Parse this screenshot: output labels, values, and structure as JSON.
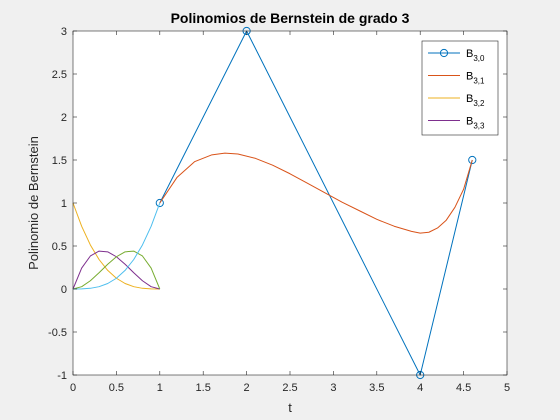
{
  "chart_data": {
    "type": "line",
    "title": "Polinomios de Bernstein de grado 3",
    "xlabel": "t",
    "ylabel": "Polinomio de Bernstein",
    "xlim": [
      0,
      5
    ],
    "ylim": [
      -1,
      3
    ],
    "xticks": [
      0,
      0.5,
      1,
      1.5,
      2,
      2.5,
      3,
      3.5,
      4,
      4.5,
      5
    ],
    "xtick_labels": [
      "0",
      "0.5",
      "1",
      "1.5",
      "2",
      "2.5",
      "3",
      "3.5",
      "4",
      "4.5",
      "5"
    ],
    "yticks": [
      -1,
      -0.5,
      0,
      0.5,
      1,
      1.5,
      2,
      2.5,
      3
    ],
    "ytick_labels": [
      "-1",
      "-0.5",
      "0",
      "0.5",
      "1",
      "1.5",
      "2",
      "2.5",
      "3"
    ],
    "grid": false,
    "legend_position": "top-right",
    "legend": [
      {
        "base": "B",
        "sub": "3,0",
        "color": "#0072BD",
        "marker": "circle"
      },
      {
        "base": "B",
        "sub": "3,1",
        "color": "#D95319",
        "marker": "none"
      },
      {
        "base": "B",
        "sub": "3,2",
        "color": "#EDB120",
        "marker": "none"
      },
      {
        "base": "B",
        "sub": "3,3",
        "color": "#7E2F8E",
        "marker": "none"
      }
    ],
    "series": [
      {
        "legend_index": 0,
        "color": "#0072BD",
        "marker": "circle",
        "x": [
          1,
          2,
          4,
          4.6
        ],
        "y": [
          1,
          3,
          -1,
          1.5
        ]
      },
      {
        "legend_index": 1,
        "color": "#D95319",
        "marker": "none",
        "x": [
          1.0,
          1.2,
          1.4,
          1.6,
          1.75,
          1.9,
          2.1,
          2.3,
          2.5,
          2.7,
          2.9,
          3.1,
          3.3,
          3.5,
          3.7,
          3.9,
          4.0,
          4.1,
          4.2,
          4.3,
          4.4,
          4.5,
          4.6
        ],
        "y": [
          1.0,
          1.3,
          1.48,
          1.56,
          1.58,
          1.57,
          1.52,
          1.44,
          1.34,
          1.23,
          1.12,
          1.01,
          0.91,
          0.81,
          0.73,
          0.67,
          0.65,
          0.66,
          0.71,
          0.8,
          0.95,
          1.16,
          1.5
        ]
      },
      {
        "legend_index": 2,
        "color": "#EDB120",
        "marker": "none",
        "x": [
          0,
          0.1,
          0.2,
          0.3,
          0.4,
          0.5,
          0.6,
          0.7,
          0.8,
          0.9,
          1.0
        ],
        "y": [
          1.0,
          0.729,
          0.512,
          0.343,
          0.216,
          0.125,
          0.064,
          0.027,
          0.008,
          0.001,
          0.0
        ]
      },
      {
        "legend_index": 3,
        "color": "#7E2F8E",
        "marker": "none",
        "x": [
          0,
          0.1,
          0.2,
          0.3,
          0.4,
          0.5,
          0.6,
          0.7,
          0.8,
          0.9,
          1.0
        ],
        "y": [
          0.0,
          0.243,
          0.384,
          0.441,
          0.432,
          0.375,
          0.288,
          0.189,
          0.096,
          0.027,
          0.0
        ]
      },
      {
        "legend_index": null,
        "color": "#77AC30",
        "marker": "none",
        "x": [
          0,
          0.1,
          0.2,
          0.3,
          0.4,
          0.5,
          0.6,
          0.7,
          0.8,
          0.9,
          1.0
        ],
        "y": [
          0.0,
          0.027,
          0.096,
          0.189,
          0.288,
          0.375,
          0.432,
          0.441,
          0.384,
          0.243,
          0.0
        ]
      },
      {
        "legend_index": null,
        "color": "#4DBEEE",
        "marker": "none",
        "x": [
          0,
          0.1,
          0.2,
          0.3,
          0.4,
          0.5,
          0.6,
          0.7,
          0.8,
          0.9,
          1.0
        ],
        "y": [
          0.0,
          0.001,
          0.008,
          0.027,
          0.064,
          0.125,
          0.216,
          0.343,
          0.512,
          0.729,
          1.0
        ]
      }
    ]
  }
}
